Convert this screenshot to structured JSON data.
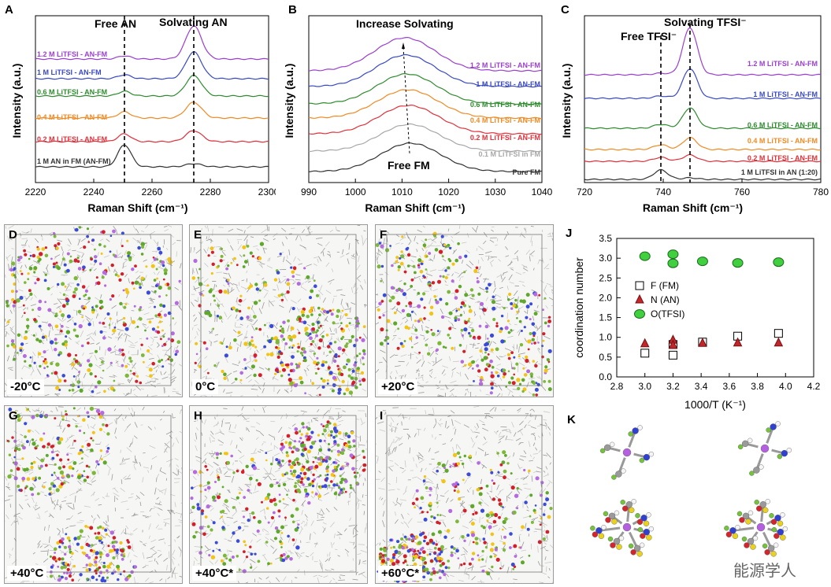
{
  "panels": {
    "A": {
      "label": "A",
      "xlabel": "Raman Shift (cm⁻¹)",
      "ylabel": "Intensity (a.u.)",
      "xticks": [
        "2220",
        "2240",
        "2260",
        "2280",
        "2300"
      ],
      "ann1": "Free AN",
      "ann2": "Solvating AN",
      "traces": [
        {
          "label": "1.2 M LiTFSI - AN-FM",
          "color": "#9b3fd0"
        },
        {
          "label": "1 M LiTFSI - AN-FM",
          "color": "#3949c4"
        },
        {
          "label": "0.6 M LiTFSI - AN-FM",
          "color": "#2e8b2e"
        },
        {
          "label": "0.4 M LiTFSI - AN-FM",
          "color": "#f08a24"
        },
        {
          "label": "0.2 M LiTFSI - AN-FM",
          "color": "#e0303a"
        },
        {
          "label": "1 M AN in FM (AN-FM)",
          "color": "#333333"
        }
      ]
    },
    "B": {
      "label": "B",
      "xlabel": "Raman Shift (cm⁻¹)",
      "ylabel": "Intensity (a.u.)",
      "xticks": [
        "990",
        "1000",
        "1010",
        "1020",
        "1030",
        "1040"
      ],
      "ann1": "Increase Solvating",
      "ann2": "Free FM",
      "traces": [
        {
          "label": "1.2 M LiTFSI - AN-FM",
          "color": "#9b3fd0"
        },
        {
          "label": "1 M LiTFSI - AN-FM",
          "color": "#3949c4"
        },
        {
          "label": "0.6 M LiTFSI - AN-FM",
          "color": "#2e8b2e"
        },
        {
          "label": "0.4 M LiTFSI - AN-FM",
          "color": "#f08a24"
        },
        {
          "label": "0.2 M LiTFSI - AN-FM",
          "color": "#e0303a"
        },
        {
          "label": "0.1 M LiTFSI in FM",
          "color": "#a8a8a8"
        },
        {
          "label": "Pure FM",
          "color": "#333333"
        }
      ]
    },
    "C": {
      "label": "C",
      "xlabel": "Raman Shift (cm⁻¹)",
      "ylabel": "Intensity (a.u.)",
      "xticks": [
        "720",
        "740",
        "760",
        "780"
      ],
      "ann1": "Free TFSI⁻",
      "ann2": "Solvating TFSI⁻",
      "traces": [
        {
          "label": "1.2 M LiTFSI - AN-FM",
          "color": "#9b3fd0"
        },
        {
          "label": "1 M LiTFSI - AN-FM",
          "color": "#3949c4"
        },
        {
          "label": "0.6 M LiTFSI - AN-FM",
          "color": "#2e8b2e"
        },
        {
          "label": "0.4 M LiTFSI - AN-FM",
          "color": "#f08a24"
        },
        {
          "label": "0.2 M LiTFSI - AN-FM",
          "color": "#e0303a"
        },
        {
          "label": "1 M LiTFSI in AN (1:20)",
          "color": "#333333"
        }
      ]
    },
    "md": [
      {
        "label": "D",
        "temp": "-20°C"
      },
      {
        "label": "E",
        "temp": "0°C"
      },
      {
        "label": "F",
        "temp": "+20°C"
      },
      {
        "label": "G",
        "temp": "+40°C"
      },
      {
        "label": "H",
        "temp": "+40°C*"
      },
      {
        "label": "I",
        "temp": "+60°C*"
      }
    ],
    "K": {
      "label": "K"
    }
  },
  "chart_data": {
    "type": "scatter",
    "label": "J",
    "xlabel": "1000/T (K⁻¹)",
    "ylabel": "coordination number",
    "xlim": [
      2.8,
      4.2
    ],
    "ylim": [
      0.0,
      3.5
    ],
    "xticks": [
      "2.8",
      "3.0",
      "3.2",
      "3.4",
      "3.6",
      "3.8",
      "4.0",
      "4.2"
    ],
    "yticks": [
      "0.0",
      "0.5",
      "1.0",
      "1.5",
      "2.0",
      "2.5",
      "3.0",
      "3.5"
    ],
    "series": [
      {
        "name": "F (FM)",
        "marker": "square",
        "color": "#ffffff",
        "x": [
          3.0,
          3.2,
          3.2,
          3.41,
          3.66,
          3.95
        ],
        "y": [
          0.6,
          0.55,
          0.82,
          0.88,
          1.03,
          1.1
        ]
      },
      {
        "name": "N (AN)",
        "marker": "triangle",
        "color": "#c0262b",
        "x": [
          3.0,
          3.2,
          3.2,
          3.41,
          3.66,
          3.95
        ],
        "y": [
          0.84,
          0.93,
          0.8,
          0.85,
          0.86,
          0.86
        ]
      },
      {
        "name": "O(TFSI)",
        "marker": "circle",
        "color": "#3fcf3f",
        "x": [
          3.0,
          3.2,
          3.2,
          3.41,
          3.66,
          3.95
        ],
        "y": [
          3.05,
          3.1,
          2.87,
          2.92,
          2.88,
          2.9
        ]
      }
    ]
  },
  "watermark": "能源学人"
}
